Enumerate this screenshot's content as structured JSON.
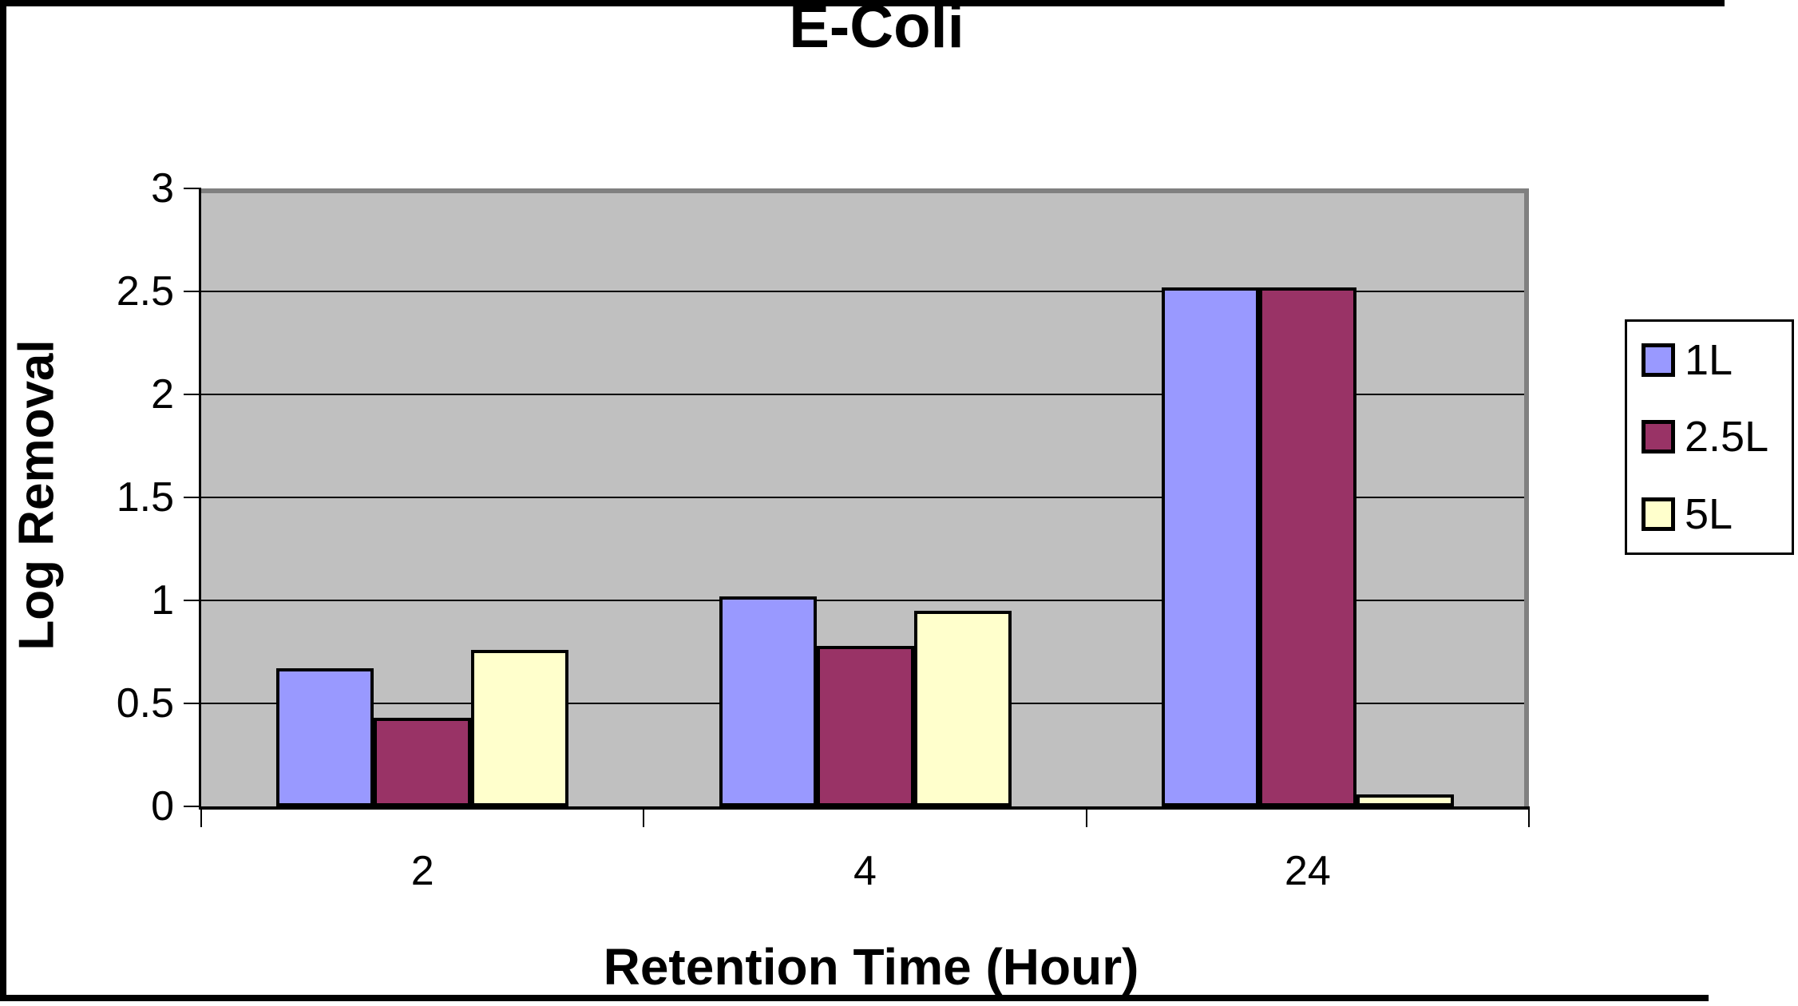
{
  "chart_data": {
    "type": "bar",
    "title": "E-Coli",
    "xlabel": "Retention Time (Hour)",
    "ylabel": "Log Removal",
    "categories": [
      "2",
      "4",
      "24"
    ],
    "series": [
      {
        "name": "1L",
        "color": "#9999FF",
        "values": [
          0.67,
          1.02,
          2.52
        ]
      },
      {
        "name": "2.5L",
        "color": "#993366",
        "values": [
          0.43,
          0.78,
          2.52
        ]
      },
      {
        "name": "5L",
        "color": "#FFFFCC",
        "values": [
          0.76,
          0.95,
          0.06
        ]
      }
    ],
    "ylim": [
      0,
      3
    ],
    "yticks": [
      0,
      0.5,
      1,
      1.5,
      2,
      2.5,
      3
    ],
    "grid": true,
    "legend_position": "right",
    "plot_background": "#C0C0C0",
    "bar_border_color": "#000000",
    "shadow_color": "#808080"
  }
}
